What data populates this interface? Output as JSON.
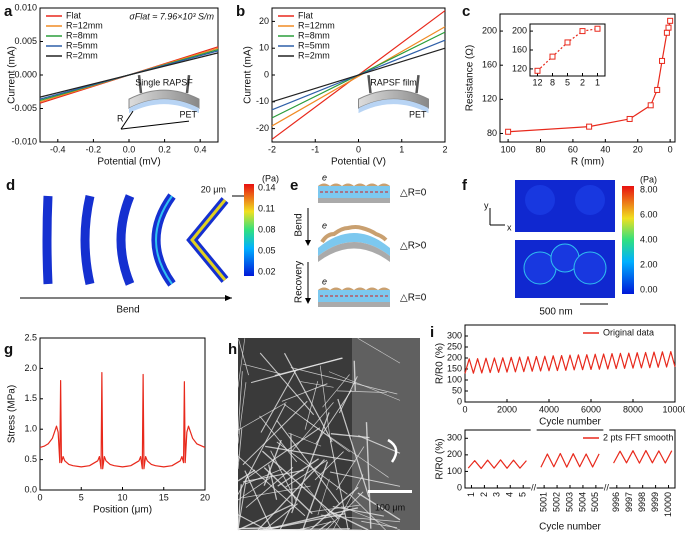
{
  "chart_data": [
    {
      "type": "line",
      "panel": "a",
      "xlabel": "Potential (mV)",
      "ylabel": "Current (mA)",
      "annotation": "σFlat ≈ 7.96×10³ S/m",
      "xlim": [
        -0.5,
        0.5
      ],
      "ylim": [
        -0.01,
        0.01
      ],
      "xticks": [
        -0.4,
        -0.2,
        {
          "value": 0,
          "label": "0.0"
        },
        0.2,
        0.4
      ],
      "yticks": [
        {
          "value": -0.01,
          "label": "-0.010"
        },
        {
          "value": -0.005,
          "label": "-0.005"
        },
        {
          "value": 0,
          "label": "0.000"
        },
        {
          "value": 0.005,
          "label": "0.005"
        },
        {
          "value": 0.01,
          "label": "0.010"
        }
      ],
      "x": [
        -0.5,
        0.5
      ],
      "legend": "upper left",
      "inset_labels": [
        "Single RAPSF",
        "PET",
        "R"
      ],
      "series": [
        {
          "name": "Flat",
          "color": "#e8291c",
          "values": [
            -0.0042,
            0.0042
          ]
        },
        {
          "name": "R=12mm",
          "color": "#f08a24",
          "values": [
            -0.004,
            0.004
          ]
        },
        {
          "name": "R=8mm",
          "color": "#2a9d3a",
          "values": [
            -0.0038,
            0.0038
          ]
        },
        {
          "name": "R=5mm",
          "color": "#2e5fa8",
          "values": [
            -0.0036,
            0.0036
          ]
        },
        {
          "name": "R=2mm",
          "color": "#222222",
          "values": [
            -0.0033,
            0.0033
          ]
        }
      ]
    },
    {
      "type": "line",
      "panel": "b",
      "xlabel": "Potential (V)",
      "ylabel": "Current (mA)",
      "xlim": [
        -2,
        2
      ],
      "ylim": [
        -25,
        25
      ],
      "xticks": [
        -2,
        -1,
        0,
        1,
        2
      ],
      "yticks": [
        -20,
        -10,
        0,
        10,
        20
      ],
      "x": [
        -2,
        2
      ],
      "legend": "upper left",
      "inset_labels": [
        "RAPSF film",
        "PET"
      ],
      "series": [
        {
          "name": "Flat",
          "color": "#e8291c",
          "values": [
            -24,
            24
          ]
        },
        {
          "name": "R=12mm",
          "color": "#f08a24",
          "values": [
            -19,
            18
          ]
        },
        {
          "name": "R=8mm",
          "color": "#2a9d3a",
          "values": [
            -16,
            16
          ]
        },
        {
          "name": "R=5mm",
          "color": "#2e5fa8",
          "values": [
            -13,
            13
          ]
        },
        {
          "name": "R=2mm",
          "color": "#222222",
          "values": [
            -10,
            10
          ]
        }
      ]
    },
    {
      "type": "line",
      "panel": "c",
      "xlabel": "R (mm)",
      "ylabel": "Resistance (Ω)",
      "xlim": [
        105,
        -3
      ],
      "ylim": [
        70,
        220
      ],
      "xticks": [
        100,
        80,
        60,
        40,
        20,
        0
      ],
      "yticks": [
        80,
        120,
        160,
        200
      ],
      "marker": "square",
      "x": [
        100,
        50,
        25,
        12,
        8,
        5,
        2,
        1,
        0
      ],
      "series": [
        {
          "color": "#e8291c",
          "values": [
            82,
            88,
            97,
            113,
            131,
            165,
            198,
            204,
            212
          ]
        }
      ]
    },
    {
      "type": "line",
      "categories": [
        "12",
        "8",
        "5",
        "2",
        "1"
      ],
      "ylim": [
        105,
        215
      ],
      "yticks": [
        120,
        160,
        200
      ],
      "marker": "square",
      "line_style": "dashed",
      "series": [
        {
          "color": "#e8291c",
          "values": [
            116,
            146,
            176,
            200,
            205
          ]
        }
      ]
    },
    {
      "type": "line",
      "panel": "g",
      "xlabel": "Position (μm)",
      "ylabel": "Stress (MPa)",
      "xlim": [
        0,
        20
      ],
      "ylim": [
        0,
        2.5
      ],
      "xticks": [
        0,
        5,
        10,
        15,
        20
      ],
      "yticks": [
        {
          "value": 0,
          "label": "0.0"
        },
        0.5,
        {
          "value": 1,
          "label": "1.0"
        },
        1.5,
        {
          "value": 2,
          "label": "2.0"
        },
        2.5
      ],
      "x": [
        0,
        0.5,
        1,
        1.5,
        2,
        2.2,
        2.4,
        2.5,
        2.6,
        2.8,
        3,
        3.5,
        4,
        5,
        6,
        7,
        7.2,
        7.4,
        7.5,
        7.6,
        7.8,
        8,
        8.5,
        9,
        10,
        11,
        12,
        12.2,
        12.4,
        12.5,
        12.6,
        12.8,
        13,
        13.5,
        14,
        15,
        16,
        17,
        17.2,
        17.4,
        17.5,
        17.6,
        17.8,
        18,
        18.5,
        19,
        20
      ],
      "series": [
        {
          "color": "#e8291c",
          "values": [
            0.7,
            0.72,
            0.76,
            0.85,
            1.05,
            0.95,
            0.45,
            1.8,
            0.45,
            0.55,
            0.48,
            0.42,
            0.4,
            0.38,
            0.4,
            0.48,
            0.55,
            0.35,
            1.93,
            0.35,
            0.55,
            0.48,
            0.42,
            0.4,
            0.38,
            0.4,
            0.48,
            0.55,
            0.35,
            1.9,
            0.35,
            0.55,
            0.48,
            0.42,
            0.4,
            0.38,
            0.4,
            0.48,
            0.55,
            0.45,
            1.78,
            0.45,
            0.95,
            1.05,
            0.85,
            0.76,
            0.7
          ]
        }
      ]
    },
    {
      "type": "line",
      "panel": "i",
      "xlabel": "Cycle number",
      "ylabel": "R/R0 (%)",
      "xlim": [
        0,
        10000
      ],
      "ylim": [
        0,
        350
      ],
      "xticks": [
        0,
        2000,
        4000,
        6000,
        8000,
        10000
      ],
      "yticks": [
        0,
        50,
        100,
        150,
        200,
        250,
        300
      ],
      "legend": "upper right",
      "x": [
        0,
        200,
        400,
        600,
        800,
        1000,
        1200,
        1400,
        1600,
        1800,
        2000,
        2200,
        2400,
        2600,
        2800,
        3000,
        3200,
        3400,
        3600,
        3800,
        4000,
        4200,
        4400,
        4600,
        4800,
        5000,
        5200,
        5400,
        5600,
        5800,
        6000,
        6200,
        6400,
        6600,
        6800,
        7000,
        7200,
        7400,
        7600,
        7800,
        8000,
        8200,
        8400,
        8600,
        8800,
        9000,
        9200,
        9400,
        9600,
        9800,
        10000
      ],
      "series": [
        {
          "name": "Original data",
          "color": "#e8291c",
          "values": [
            130,
            196,
            131,
            197,
            132,
            199,
            134,
            200,
            135,
            201,
            136,
            203,
            137,
            204,
            138,
            206,
            140,
            207,
            141,
            208,
            142,
            210,
            143,
            211,
            144,
            213,
            146,
            214,
            147,
            215,
            148,
            217,
            149,
            218,
            150,
            220,
            152,
            221,
            153,
            222,
            154,
            224,
            155,
            225,
            156,
            227,
            158,
            228,
            159,
            229,
            160
          ]
        }
      ]
    },
    {
      "type": "line",
      "xlabel": "Cycle number",
      "ylabel": "R/R0 (%)",
      "ylim": [
        0,
        350
      ],
      "yticks": [
        0,
        100,
        200,
        300
      ],
      "legend": "upper right",
      "series": [
        {
          "name": "2 pts FFT smooth",
          "color": "#e8291c",
          "segments": [
            {
              "xlim": [
                0.5,
                5.5
              ],
              "xticks": [
                1,
                2,
                3,
                4,
                5
              ],
              "x": [
                0.75,
                1.25,
                1.75,
                2.25,
                2.75,
                3.25,
                3.75,
                4.25,
                4.75,
                5.25
              ],
              "values": [
                120,
                165,
                118,
                168,
                120,
                170,
                119,
                168,
                120,
                165
              ]
            },
            {
              "xlim": [
                5000.5,
                5005.5
              ],
              "xticks": [
                5001,
                5002,
                5003,
                5004,
                5005
              ],
              "x": [
                5000.75,
                5001.25,
                5001.75,
                5002.25,
                5002.75,
                5003.25,
                5003.75,
                5004.25,
                5004.75,
                5005.25
              ],
              "values": [
                125,
                205,
                128,
                208,
                126,
                207,
                128,
                205,
                127,
                206
              ]
            },
            {
              "xlim": [
                9995.5,
                10000.5
              ],
              "xticks": [
                9996,
                9997,
                9998,
                9999,
                10000
              ],
              "x": [
                9995.75,
                9996.25,
                9996.75,
                9997.25,
                9997.75,
                9998.25,
                9998.75,
                9999.25,
                9999.75,
                10000.25
              ],
              "values": [
                150,
                222,
                152,
                225,
                150,
                226,
                152,
                224,
                151,
                225
              ]
            }
          ]
        }
      ]
    }
  ],
  "panels": {
    "d": {
      "letter": "d",
      "unit": "(Pa)",
      "colorbar_ticks": [
        "0.14",
        "0.11",
        "0.08",
        "0.05",
        "0.02"
      ],
      "scale_bar": "20 μm",
      "arrow_label": "Bend"
    },
    "e": {
      "letter": "e",
      "electron": "e",
      "states": [
        "△R=0",
        "△R>0",
        "△R=0"
      ],
      "steps": [
        "Bend",
        "Recovery"
      ]
    },
    "f": {
      "letter": "f",
      "unit": "(Pa)",
      "colorbar_ticks": [
        "8.00",
        "6.00",
        "4.00",
        "2.00",
        "0.00"
      ],
      "axes": [
        "y",
        "x"
      ],
      "scale_bar": "500 nm"
    },
    "h": {
      "letter": "h",
      "scale_bar": "100 μm"
    }
  }
}
